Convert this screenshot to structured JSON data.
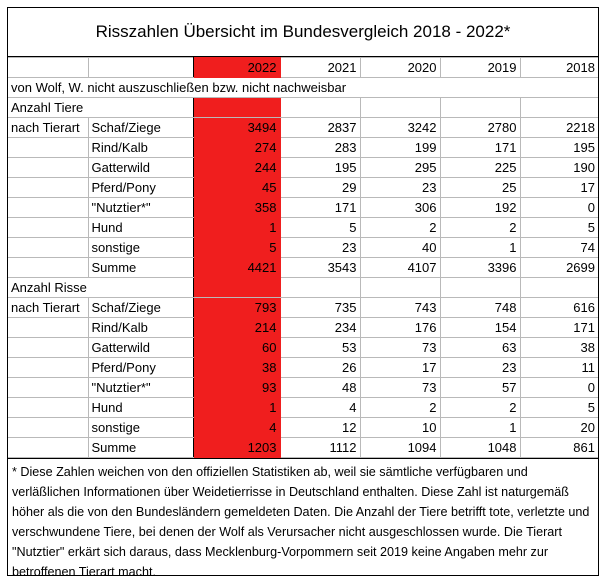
{
  "title": "Risszahlen Übersicht im Bundesvergleich 2018 - 2022*",
  "years": [
    "2022",
    "2021",
    "2020",
    "2019",
    "2018"
  ],
  "note_row": "von Wolf, W. nicht auszuschließen bzw. nicht nachweisbar",
  "sections": [
    {
      "header1": "Anzahl Tiere",
      "header2": "nach Tierart",
      "rows": [
        {
          "label": "Schaf/Ziege",
          "values": [
            "3494",
            "2837",
            "3242",
            "2780",
            "2218"
          ]
        },
        {
          "label": "Rind/Kalb",
          "values": [
            "274",
            "283",
            "199",
            "171",
            "195"
          ]
        },
        {
          "label": "Gatterwild",
          "values": [
            "244",
            "195",
            "295",
            "225",
            "190"
          ]
        },
        {
          "label": "Pferd/Pony",
          "values": [
            "45",
            "29",
            "23",
            "25",
            "17"
          ]
        },
        {
          "label": "\"Nutztier*\"",
          "values": [
            "358",
            "171",
            "306",
            "192",
            "0"
          ]
        },
        {
          "label": "Hund",
          "values": [
            "1",
            "5",
            "2",
            "2",
            "5"
          ]
        },
        {
          "label": "sonstige",
          "values": [
            "5",
            "23",
            "40",
            "1",
            "74"
          ]
        },
        {
          "label": "Summe",
          "values": [
            "4421",
            "3543",
            "4107",
            "3396",
            "2699"
          ]
        }
      ]
    },
    {
      "header1": "Anzahl Risse",
      "header2": "nach Tierart",
      "rows": [
        {
          "label": "Schaf/Ziege",
          "values": [
            "793",
            "735",
            "743",
            "748",
            "616"
          ]
        },
        {
          "label": "Rind/Kalb",
          "values": [
            "214",
            "234",
            "176",
            "154",
            "171"
          ]
        },
        {
          "label": "Gatterwild",
          "values": [
            "60",
            "53",
            "73",
            "63",
            "38"
          ]
        },
        {
          "label": "Pferd/Pony",
          "values": [
            "38",
            "26",
            "17",
            "23",
            "11"
          ]
        },
        {
          "label": "\"Nutztier*\"",
          "values": [
            "93",
            "48",
            "73",
            "57",
            "0"
          ]
        },
        {
          "label": "Hund",
          "values": [
            "1",
            "4",
            "2",
            "2",
            "5"
          ]
        },
        {
          "label": "sonstige",
          "values": [
            "4",
            "12",
            "10",
            "1",
            "20"
          ]
        },
        {
          "label": "Summe",
          "values": [
            "1203",
            "1112",
            "1094",
            "1048",
            "861"
          ]
        }
      ]
    }
  ],
  "footnote": "* Diese Zahlen weichen von den offiziellen Statistiken ab, weil sie sämtliche verfügbaren und verläßlichen  Informationen über Weidetierrisse in Deutschland enthalten. Diese Zahl ist naturgemäß höher als die von den Bundesländern gemeldeten Daten. Die Anzahl der Tiere betrifft tote, verletzte und verschwundene Tiere, bei denen der Wolf als Verursacher nicht ausgeschlossen wurde. Die Tierart \"Nutztier\" erkärt sich daraus, dass Mecklenburg-Vorpommern seit 2019 keine Angaben mehr zur betroffenen Tierart macht.",
  "colors": {
    "highlight": "#f01e1e",
    "grid": "#b9b9b9"
  }
}
